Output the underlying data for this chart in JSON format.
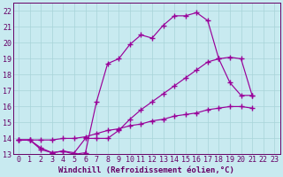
{
  "background_color": "#c8eaf0",
  "grid_color": "#a8d4d8",
  "line_color": "#990099",
  "xlabel": "Windchill (Refroidissement éolien,°C)",
  "xlabel_fontsize": 6.5,
  "tick_fontsize": 6,
  "xlim": [
    -0.5,
    23.5
  ],
  "ylim": [
    13,
    22.5
  ],
  "yticks": [
    13,
    14,
    15,
    16,
    17,
    18,
    19,
    20,
    21,
    22
  ],
  "xticks": [
    0,
    1,
    2,
    3,
    4,
    5,
    6,
    7,
    8,
    9,
    10,
    11,
    12,
    13,
    14,
    15,
    16,
    17,
    18,
    19,
    20,
    21,
    22,
    23
  ],
  "line1_x": [
    0,
    1,
    2,
    3,
    4,
    5,
    6,
    7,
    8,
    9,
    10,
    11,
    12,
    13,
    14,
    15,
    16,
    17,
    18,
    19,
    20,
    21
  ],
  "line1_y": [
    13.9,
    13.9,
    13.3,
    13.1,
    13.2,
    13.0,
    13.1,
    16.3,
    18.7,
    19.0,
    19.9,
    20.5,
    20.3,
    21.1,
    21.7,
    21.7,
    21.9,
    21.4,
    19.0,
    17.5,
    16.7,
    16.7
  ],
  "line2_x": [
    0,
    1,
    2,
    3,
    4,
    5,
    6,
    7,
    8,
    9,
    10,
    11,
    12,
    13,
    14,
    15,
    16,
    17,
    18,
    19,
    20,
    21
  ],
  "line2_y": [
    13.9,
    13.9,
    13.4,
    13.1,
    13.2,
    13.1,
    14.0,
    14.0,
    14.0,
    14.5,
    15.2,
    15.8,
    16.3,
    16.8,
    17.3,
    17.8,
    18.3,
    18.8,
    19.0,
    19.1,
    19.0,
    16.7
  ],
  "line3_x": [
    0,
    1,
    2,
    3,
    4,
    5,
    6,
    7,
    8,
    9,
    10,
    11,
    12,
    13,
    14,
    15,
    16,
    17,
    18,
    19,
    20,
    21
  ],
  "line3_y": [
    13.9,
    13.9,
    13.9,
    13.9,
    14.0,
    14.0,
    14.1,
    14.3,
    14.5,
    14.6,
    14.8,
    14.9,
    15.1,
    15.2,
    15.4,
    15.5,
    15.6,
    15.8,
    15.9,
    16.0,
    16.0,
    15.9
  ]
}
